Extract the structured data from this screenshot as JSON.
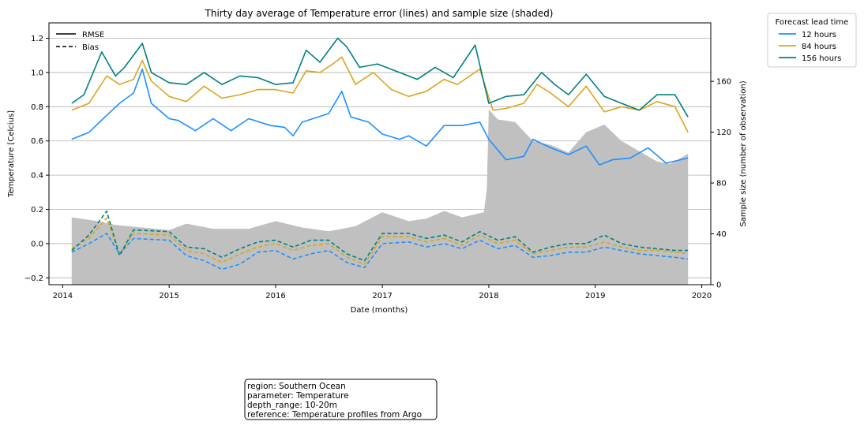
{
  "chart_data": {
    "type": "line",
    "title": "Thirty day average of Temperature error (lines) and sample size (shaded)",
    "xlabel": "Date (months)",
    "ylabel": "Temperature [Celcius]",
    "y2label": "Sample size (number of observation)",
    "xlim": [
      "2013-11-15",
      "2020-02-01"
    ],
    "ylim": [
      -0.24,
      1.29
    ],
    "y2lim": [
      0,
      206
    ],
    "x_ticks": [
      "2014",
      "2015",
      "2016",
      "2017",
      "2018",
      "2019",
      "2020"
    ],
    "y_ticks": [
      "−0.2",
      "0.0",
      "0.2",
      "0.4",
      "0.6",
      "0.8",
      "1.0",
      "1.2"
    ],
    "y2_ticks": [
      "0",
      "40",
      "80",
      "120",
      "160"
    ],
    "grid": "horizontal",
    "style_legend": {
      "placement": "top-left",
      "entries": [
        {
          "label": "RMSE",
          "dash": "solid"
        },
        {
          "label": "Bias",
          "dash": "dashed"
        }
      ]
    },
    "series_legend": {
      "title": "Forecast lead time",
      "placement": "outside-top-right",
      "entries": [
        {
          "label": "12 hours",
          "color": "#1e90ff"
        },
        {
          "label": "84 hours",
          "color": "#daa520"
        },
        {
          "label": "156 hours",
          "color": "#008080"
        }
      ]
    },
    "sample_size": {
      "color": "#c0c0c0",
      "points": [
        [
          "2014-02-01",
          53
        ],
        [
          "2014-05-01",
          50
        ],
        [
          "2014-07-01",
          47
        ],
        [
          "2014-10-01",
          45
        ],
        [
          "2015-01-01",
          43
        ],
        [
          "2015-03-01",
          48
        ],
        [
          "2015-06-01",
          44
        ],
        [
          "2015-10-01",
          44
        ],
        [
          "2016-01-01",
          50
        ],
        [
          "2016-04-01",
          45
        ],
        [
          "2016-07-01",
          42
        ],
        [
          "2016-10-01",
          46
        ],
        [
          "2017-01-01",
          57
        ],
        [
          "2017-04-01",
          50
        ],
        [
          "2017-06-01",
          52
        ],
        [
          "2017-08-01",
          58
        ],
        [
          "2017-10-01",
          53
        ],
        [
          "2017-12-15",
          57
        ],
        [
          "2017-12-25",
          75
        ],
        [
          "2018-01-01",
          138
        ],
        [
          "2018-02-01",
          130
        ],
        [
          "2018-04-01",
          128
        ],
        [
          "2018-06-01",
          113
        ],
        [
          "2018-08-01",
          110
        ],
        [
          "2018-10-01",
          104
        ],
        [
          "2018-12-01",
          120
        ],
        [
          "2019-02-01",
          126
        ],
        [
          "2019-04-01",
          113
        ],
        [
          "2019-06-01",
          105
        ],
        [
          "2019-08-01",
          97
        ],
        [
          "2019-09-15",
          95
        ],
        [
          "2019-11-15",
          103
        ]
      ]
    },
    "series": [
      {
        "name": "12 hours",
        "metric": "RMSE",
        "color": "#1e90ff",
        "dash": "solid",
        "points": [
          [
            "2014-02-01",
            0.61
          ],
          [
            "2014-04-01",
            0.65
          ],
          [
            "2014-06-01",
            0.75
          ],
          [
            "2014-07-15",
            0.82
          ],
          [
            "2014-09-01",
            0.88
          ],
          [
            "2014-10-01",
            1.02
          ],
          [
            "2014-11-01",
            0.82
          ],
          [
            "2015-01-01",
            0.73
          ],
          [
            "2015-02-01",
            0.72
          ],
          [
            "2015-04-01",
            0.66
          ],
          [
            "2015-06-01",
            0.73
          ],
          [
            "2015-08-01",
            0.66
          ],
          [
            "2015-10-01",
            0.73
          ],
          [
            "2015-12-15",
            0.69
          ],
          [
            "2016-02-01",
            0.68
          ],
          [
            "2016-03-01",
            0.63
          ],
          [
            "2016-04-01",
            0.71
          ],
          [
            "2016-07-01",
            0.76
          ],
          [
            "2016-08-15",
            0.89
          ],
          [
            "2016-09-15",
            0.74
          ],
          [
            "2016-11-15",
            0.71
          ],
          [
            "2017-01-01",
            0.64
          ],
          [
            "2017-03-01",
            0.61
          ],
          [
            "2017-04-01",
            0.63
          ],
          [
            "2017-06-01",
            0.57
          ],
          [
            "2017-08-01",
            0.69
          ],
          [
            "2017-10-01",
            0.69
          ],
          [
            "2017-12-01",
            0.71
          ],
          [
            "2018-01-01",
            0.61
          ],
          [
            "2018-03-01",
            0.49
          ],
          [
            "2018-05-01",
            0.51
          ],
          [
            "2018-06-01",
            0.61
          ],
          [
            "2018-08-01",
            0.56
          ],
          [
            "2018-10-01",
            0.52
          ],
          [
            "2018-12-01",
            0.57
          ],
          [
            "2019-01-15",
            0.46
          ],
          [
            "2019-03-01",
            0.49
          ],
          [
            "2019-05-01",
            0.5
          ],
          [
            "2019-07-01",
            0.56
          ],
          [
            "2019-09-01",
            0.47
          ],
          [
            "2019-11-15",
            0.5
          ]
        ]
      },
      {
        "name": "84 hours",
        "metric": "RMSE",
        "color": "#daa520",
        "dash": "solid",
        "points": [
          [
            "2014-02-01",
            0.78
          ],
          [
            "2014-04-01",
            0.82
          ],
          [
            "2014-06-01",
            0.98
          ],
          [
            "2014-07-15",
            0.93
          ],
          [
            "2014-09-01",
            0.96
          ],
          [
            "2014-10-01",
            1.07
          ],
          [
            "2014-11-01",
            0.95
          ],
          [
            "2015-01-01",
            0.86
          ],
          [
            "2015-03-01",
            0.83
          ],
          [
            "2015-05-01",
            0.92
          ],
          [
            "2015-07-01",
            0.85
          ],
          [
            "2015-09-01",
            0.87
          ],
          [
            "2015-11-01",
            0.9
          ],
          [
            "2016-01-01",
            0.9
          ],
          [
            "2016-03-01",
            0.88
          ],
          [
            "2016-04-15",
            1.01
          ],
          [
            "2016-06-01",
            1.0
          ],
          [
            "2016-07-15",
            1.05
          ],
          [
            "2016-08-15",
            1.09
          ],
          [
            "2016-10-01",
            0.93
          ],
          [
            "2016-12-01",
            1.0
          ],
          [
            "2017-02-01",
            0.9
          ],
          [
            "2017-04-01",
            0.86
          ],
          [
            "2017-06-01",
            0.89
          ],
          [
            "2017-08-01",
            0.96
          ],
          [
            "2017-09-15",
            0.93
          ],
          [
            "2017-12-01",
            1.02
          ],
          [
            "2018-01-15",
            0.78
          ],
          [
            "2018-03-01",
            0.79
          ],
          [
            "2018-05-01",
            0.82
          ],
          [
            "2018-06-15",
            0.93
          ],
          [
            "2018-08-01",
            0.88
          ],
          [
            "2018-10-01",
            0.8
          ],
          [
            "2018-12-01",
            0.92
          ],
          [
            "2019-02-01",
            0.77
          ],
          [
            "2019-04-01",
            0.8
          ],
          [
            "2019-06-01",
            0.78
          ],
          [
            "2019-08-01",
            0.83
          ],
          [
            "2019-10-01",
            0.8
          ],
          [
            "2019-11-15",
            0.65
          ]
        ]
      },
      {
        "name": "156 hours",
        "metric": "RMSE",
        "color": "#008080",
        "dash": "solid",
        "points": [
          [
            "2014-02-01",
            0.82
          ],
          [
            "2014-03-15",
            0.87
          ],
          [
            "2014-05-15",
            1.12
          ],
          [
            "2014-07-01",
            0.98
          ],
          [
            "2014-08-01",
            1.03
          ],
          [
            "2014-10-01",
            1.17
          ],
          [
            "2014-11-01",
            1.0
          ],
          [
            "2015-01-01",
            0.94
          ],
          [
            "2015-03-01",
            0.93
          ],
          [
            "2015-05-01",
            1.0
          ],
          [
            "2015-07-01",
            0.93
          ],
          [
            "2015-09-01",
            0.98
          ],
          [
            "2015-11-01",
            0.97
          ],
          [
            "2016-01-01",
            0.93
          ],
          [
            "2016-03-01",
            0.94
          ],
          [
            "2016-04-15",
            1.13
          ],
          [
            "2016-06-01",
            1.06
          ],
          [
            "2016-08-01",
            1.2
          ],
          [
            "2016-09-01",
            1.15
          ],
          [
            "2016-10-15",
            1.03
          ],
          [
            "2016-12-15",
            1.05
          ],
          [
            "2017-03-01",
            1.0
          ],
          [
            "2017-05-01",
            0.96
          ],
          [
            "2017-07-01",
            1.03
          ],
          [
            "2017-09-01",
            0.97
          ],
          [
            "2017-11-15",
            1.16
          ],
          [
            "2018-01-01",
            0.82
          ],
          [
            "2018-03-01",
            0.86
          ],
          [
            "2018-05-01",
            0.87
          ],
          [
            "2018-07-01",
            1.0
          ],
          [
            "2018-08-15",
            0.93
          ],
          [
            "2018-10-01",
            0.87
          ],
          [
            "2018-12-01",
            0.99
          ],
          [
            "2019-02-01",
            0.86
          ],
          [
            "2019-04-01",
            0.82
          ],
          [
            "2019-06-01",
            0.78
          ],
          [
            "2019-08-01",
            0.87
          ],
          [
            "2019-10-01",
            0.87
          ],
          [
            "2019-11-15",
            0.74
          ]
        ]
      },
      {
        "name": "12 hours",
        "metric": "Bias",
        "color": "#1e90ff",
        "dash": "dashed",
        "points": [
          [
            "2014-02-01",
            -0.05
          ],
          [
            "2014-04-01",
            0.0
          ],
          [
            "2014-06-01",
            0.06
          ],
          [
            "2014-07-15",
            -0.06
          ],
          [
            "2014-09-01",
            0.03
          ],
          [
            "2015-01-01",
            0.02
          ],
          [
            "2015-03-01",
            -0.07
          ],
          [
            "2015-05-01",
            -0.1
          ],
          [
            "2015-07-01",
            -0.15
          ],
          [
            "2015-09-01",
            -0.12
          ],
          [
            "2015-11-01",
            -0.05
          ],
          [
            "2016-01-01",
            -0.04
          ],
          [
            "2016-03-01",
            -0.09
          ],
          [
            "2016-05-01",
            -0.06
          ],
          [
            "2016-07-01",
            -0.04
          ],
          [
            "2016-09-01",
            -0.11
          ],
          [
            "2016-11-01",
            -0.14
          ],
          [
            "2017-01-01",
            0.0
          ],
          [
            "2017-04-01",
            0.01
          ],
          [
            "2017-06-01",
            -0.02
          ],
          [
            "2017-08-01",
            0.0
          ],
          [
            "2017-10-01",
            -0.03
          ],
          [
            "2017-12-01",
            0.02
          ],
          [
            "2018-02-01",
            -0.03
          ],
          [
            "2018-04-01",
            -0.01
          ],
          [
            "2018-06-01",
            -0.08
          ],
          [
            "2018-08-01",
            -0.07
          ],
          [
            "2018-10-01",
            -0.05
          ],
          [
            "2018-12-01",
            -0.05
          ],
          [
            "2019-02-01",
            -0.02
          ],
          [
            "2019-04-01",
            -0.04
          ],
          [
            "2019-06-01",
            -0.06
          ],
          [
            "2019-08-01",
            -0.07
          ],
          [
            "2019-10-01",
            -0.08
          ],
          [
            "2019-11-15",
            -0.09
          ]
        ]
      },
      {
        "name": "84 hours",
        "metric": "Bias",
        "color": "#daa520",
        "dash": "dashed",
        "points": [
          [
            "2014-02-01",
            -0.03
          ],
          [
            "2014-04-01",
            0.03
          ],
          [
            "2014-06-01",
            0.15
          ],
          [
            "2014-07-15",
            -0.06
          ],
          [
            "2014-09-01",
            0.06
          ],
          [
            "2015-01-01",
            0.05
          ],
          [
            "2015-03-01",
            -0.04
          ],
          [
            "2015-05-01",
            -0.06
          ],
          [
            "2015-07-01",
            -0.11
          ],
          [
            "2015-09-01",
            -0.06
          ],
          [
            "2015-11-01",
            -0.02
          ],
          [
            "2016-01-01",
            0.0
          ],
          [
            "2016-03-01",
            -0.04
          ],
          [
            "2016-05-01",
            -0.01
          ],
          [
            "2016-07-01",
            0.0
          ],
          [
            "2016-09-01",
            -0.08
          ],
          [
            "2016-11-01",
            -0.12
          ],
          [
            "2017-01-01",
            0.04
          ],
          [
            "2017-04-01",
            0.04
          ],
          [
            "2017-06-01",
            0.01
          ],
          [
            "2017-08-01",
            0.03
          ],
          [
            "2017-10-01",
            -0.01
          ],
          [
            "2017-12-01",
            0.05
          ],
          [
            "2018-02-01",
            0.0
          ],
          [
            "2018-04-01",
            0.02
          ],
          [
            "2018-06-01",
            -0.06
          ],
          [
            "2018-08-01",
            -0.04
          ],
          [
            "2018-10-01",
            -0.02
          ],
          [
            "2018-12-01",
            -0.02
          ],
          [
            "2019-02-01",
            0.01
          ],
          [
            "2019-04-01",
            -0.02
          ],
          [
            "2019-06-01",
            -0.04
          ],
          [
            "2019-08-01",
            -0.04
          ],
          [
            "2019-10-01",
            -0.05
          ],
          [
            "2019-11-15",
            -0.06
          ]
        ]
      },
      {
        "name": "156 hours",
        "metric": "Bias",
        "color": "#008080",
        "dash": "dashed",
        "points": [
          [
            "2014-02-01",
            -0.04
          ],
          [
            "2014-04-01",
            0.05
          ],
          [
            "2014-06-01",
            0.19
          ],
          [
            "2014-07-15",
            -0.07
          ],
          [
            "2014-09-01",
            0.08
          ],
          [
            "2015-01-01",
            0.07
          ],
          [
            "2015-03-01",
            -0.02
          ],
          [
            "2015-05-01",
            -0.03
          ],
          [
            "2015-07-01",
            -0.08
          ],
          [
            "2015-09-01",
            -0.03
          ],
          [
            "2015-11-01",
            0.01
          ],
          [
            "2016-01-01",
            0.02
          ],
          [
            "2016-03-01",
            -0.02
          ],
          [
            "2016-05-01",
            0.02
          ],
          [
            "2016-07-01",
            0.02
          ],
          [
            "2016-09-01",
            -0.06
          ],
          [
            "2016-11-01",
            -0.1
          ],
          [
            "2017-01-01",
            0.06
          ],
          [
            "2017-04-01",
            0.06
          ],
          [
            "2017-06-01",
            0.03
          ],
          [
            "2017-08-01",
            0.05
          ],
          [
            "2017-10-01",
            0.01
          ],
          [
            "2017-12-01",
            0.07
          ],
          [
            "2018-02-01",
            0.02
          ],
          [
            "2018-04-01",
            0.04
          ],
          [
            "2018-06-01",
            -0.05
          ],
          [
            "2018-08-01",
            -0.02
          ],
          [
            "2018-10-01",
            0.0
          ],
          [
            "2018-12-01",
            0.0
          ],
          [
            "2019-02-01",
            0.05
          ],
          [
            "2019-04-01",
            0.0
          ],
          [
            "2019-06-01",
            -0.02
          ],
          [
            "2019-08-01",
            -0.03
          ],
          [
            "2019-10-01",
            -0.04
          ],
          [
            "2019-11-15",
            -0.04
          ]
        ]
      }
    ],
    "annotation": [
      "region: Southern Ocean",
      "parameter: Temperature",
      "depth_range: 10-20m",
      "reference: Temperature profiles from Argo"
    ]
  }
}
